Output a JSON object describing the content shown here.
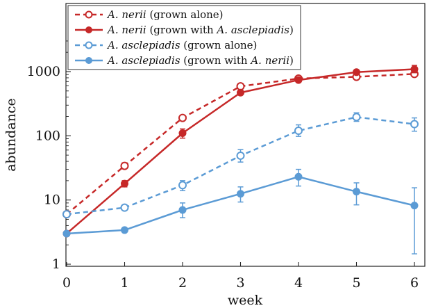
{
  "chart_data": {
    "type": "line",
    "xlabel": "week",
    "ylabel": "abundance",
    "yscale": "log",
    "xlim": [
      0,
      6
    ],
    "ylim": [
      1,
      3000
    ],
    "x_ticks": [
      "0",
      "1",
      "2",
      "3",
      "4",
      "5",
      "6"
    ],
    "y_ticks": [
      "1",
      "10",
      "100",
      "1000"
    ],
    "legend_position": "top-left",
    "grid": false,
    "x": [
      0,
      1,
      2,
      3,
      4,
      5,
      6
    ],
    "series": [
      {
        "name_parts": [
          {
            "text": "A. nerii",
            "italic": true
          },
          {
            "text": " (grown alone)",
            "italic": false
          }
        ],
        "color": "#c62828",
        "style": "dashed",
        "marker": "open-circle",
        "values": [
          6,
          34,
          190,
          590,
          780,
          830,
          920
        ],
        "err_low": [
          5.5,
          31,
          175,
          560,
          740,
          780,
          860
        ],
        "err_high": [
          6.5,
          38,
          205,
          620,
          820,
          880,
          990
        ]
      },
      {
        "name_parts": [
          {
            "text": "A. nerii",
            "italic": true
          },
          {
            "text": " (grown with ",
            "italic": false
          },
          {
            "text": "A. asclepiadis",
            "italic": true
          },
          {
            "text": ")",
            "italic": false
          }
        ],
        "color": "#c62828",
        "style": "solid",
        "marker": "filled-circle",
        "values": [
          3,
          18,
          110,
          470,
          740,
          980,
          1090
        ],
        "err_low": [
          2.8,
          16,
          92,
          440,
          700,
          920,
          960
        ],
        "err_high": [
          3.2,
          20,
          128,
          500,
          780,
          1040,
          1250
        ]
      },
      {
        "name_parts": [
          {
            "text": "A. asclepiadis",
            "italic": true
          },
          {
            "text": " (grown alone)",
            "italic": false
          }
        ],
        "color": "#5b9bd5",
        "style": "dashed",
        "marker": "open-circle",
        "values": [
          6,
          7.6,
          17,
          49,
          120,
          196,
          152
        ],
        "err_low": [
          5.5,
          7.1,
          14,
          39,
          98,
          168,
          118
        ],
        "err_high": [
          6.5,
          8.1,
          20,
          61,
          148,
          228,
          190
        ]
      },
      {
        "name_parts": [
          {
            "text": "A. asclepiadis",
            "italic": true
          },
          {
            "text": " (grown with ",
            "italic": false
          },
          {
            "text": "A. nerii",
            "italic": true
          },
          {
            "text": ")",
            "italic": false
          }
        ],
        "color": "#5b9bd5",
        "style": "solid",
        "marker": "filled-circle",
        "values": [
          3,
          3.4,
          7,
          12.5,
          23,
          13.5,
          8.2
        ],
        "err_low": [
          2.8,
          3.2,
          5.3,
          9.3,
          16.5,
          8.4,
          1.45
        ],
        "err_high": [
          3.2,
          3.6,
          9,
          16,
          30,
          18.5,
          15.5
        ]
      }
    ]
  }
}
